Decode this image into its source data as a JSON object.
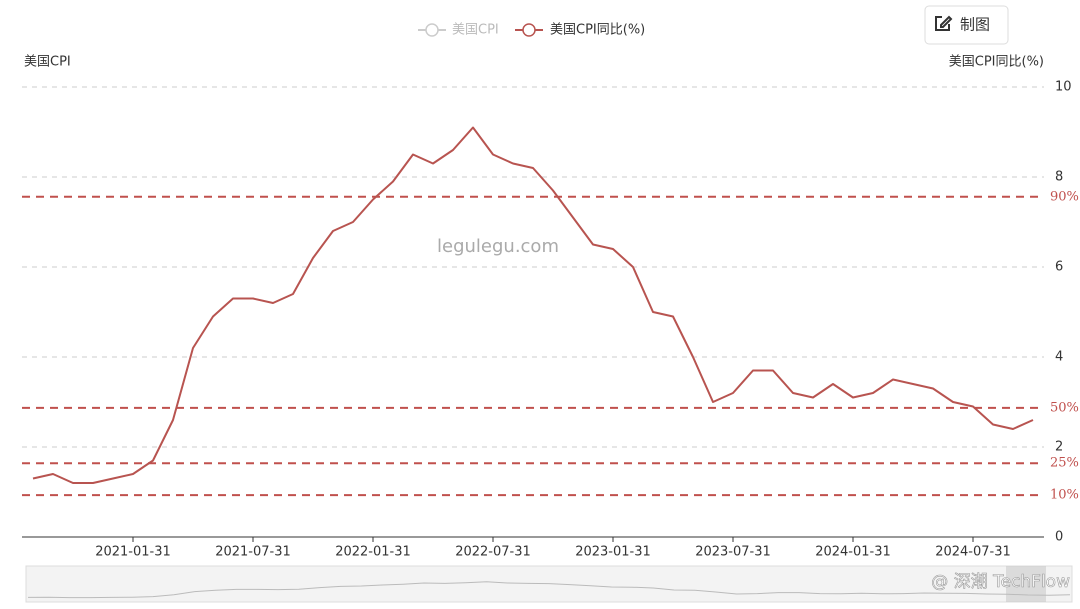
{
  "chart_data": {
    "type": "line",
    "legend": [
      {
        "name": "美国CPI",
        "color": "#cccccc"
      }
    ],
    "y_axis_label": "美国CPI",
    "y2_axis_label": "美国CPI同比(%)",
    "watermark": "legulegu.com",
    "button": "制图",
    "footer_watermark": "@ 深潮 TechFlow",
    "categories": [
      null,
      null,
      null,
      null,
      null,
      "2021-01-31",
      null,
      null,
      null,
      null,
      null,
      "2021-07-31",
      null,
      null,
      null,
      null,
      null,
      "2022-01-31",
      null,
      null,
      null,
      null,
      null,
      "2022-07-31",
      null,
      null,
      null,
      null,
      null,
      "2023-01-31",
      null,
      null,
      null,
      null,
      null,
      "2023-07-31",
      null,
      null,
      null,
      null,
      null,
      "2024-01-31",
      null,
      null,
      null,
      null,
      null,
      "2024-07-31",
      null,
      null,
      null
    ],
    "series": [
      {
        "name": "美国CPI同比(%)",
        "color": "#b85450",
        "axis": "y2",
        "values": [
          1.3,
          1.4,
          1.2,
          1.2,
          1.3,
          1.4,
          1.7,
          2.6,
          4.2,
          4.9,
          5.3,
          5.3,
          5.2,
          5.4,
          6.2,
          6.8,
          7.0,
          7.5,
          7.9,
          8.5,
          8.3,
          8.6,
          9.1,
          8.5,
          8.3,
          8.2,
          7.7,
          7.1,
          6.5,
          6.4,
          6.0,
          5.0,
          4.9,
          4.0,
          3.0,
          3.2,
          3.7,
          3.7,
          3.2,
          3.1,
          3.4,
          3.1,
          3.2,
          3.5,
          3.4,
          3.3,
          3.0,
          2.9,
          2.5,
          2.4,
          2.6
        ]
      }
    ],
    "y2lim": [
      0,
      10
    ],
    "y2ticks": [
      0,
      2,
      4,
      6,
      8,
      10
    ],
    "grid": true,
    "mark_lines": [
      {
        "name": "90%",
        "value": 7.56
      },
      {
        "name": "50%",
        "value": 2.87
      },
      {
        "name": "25%",
        "value": 1.64
      },
      {
        "name": "10%",
        "value": 0.93
      }
    ],
    "mark_line_color": "#c0504d"
  }
}
